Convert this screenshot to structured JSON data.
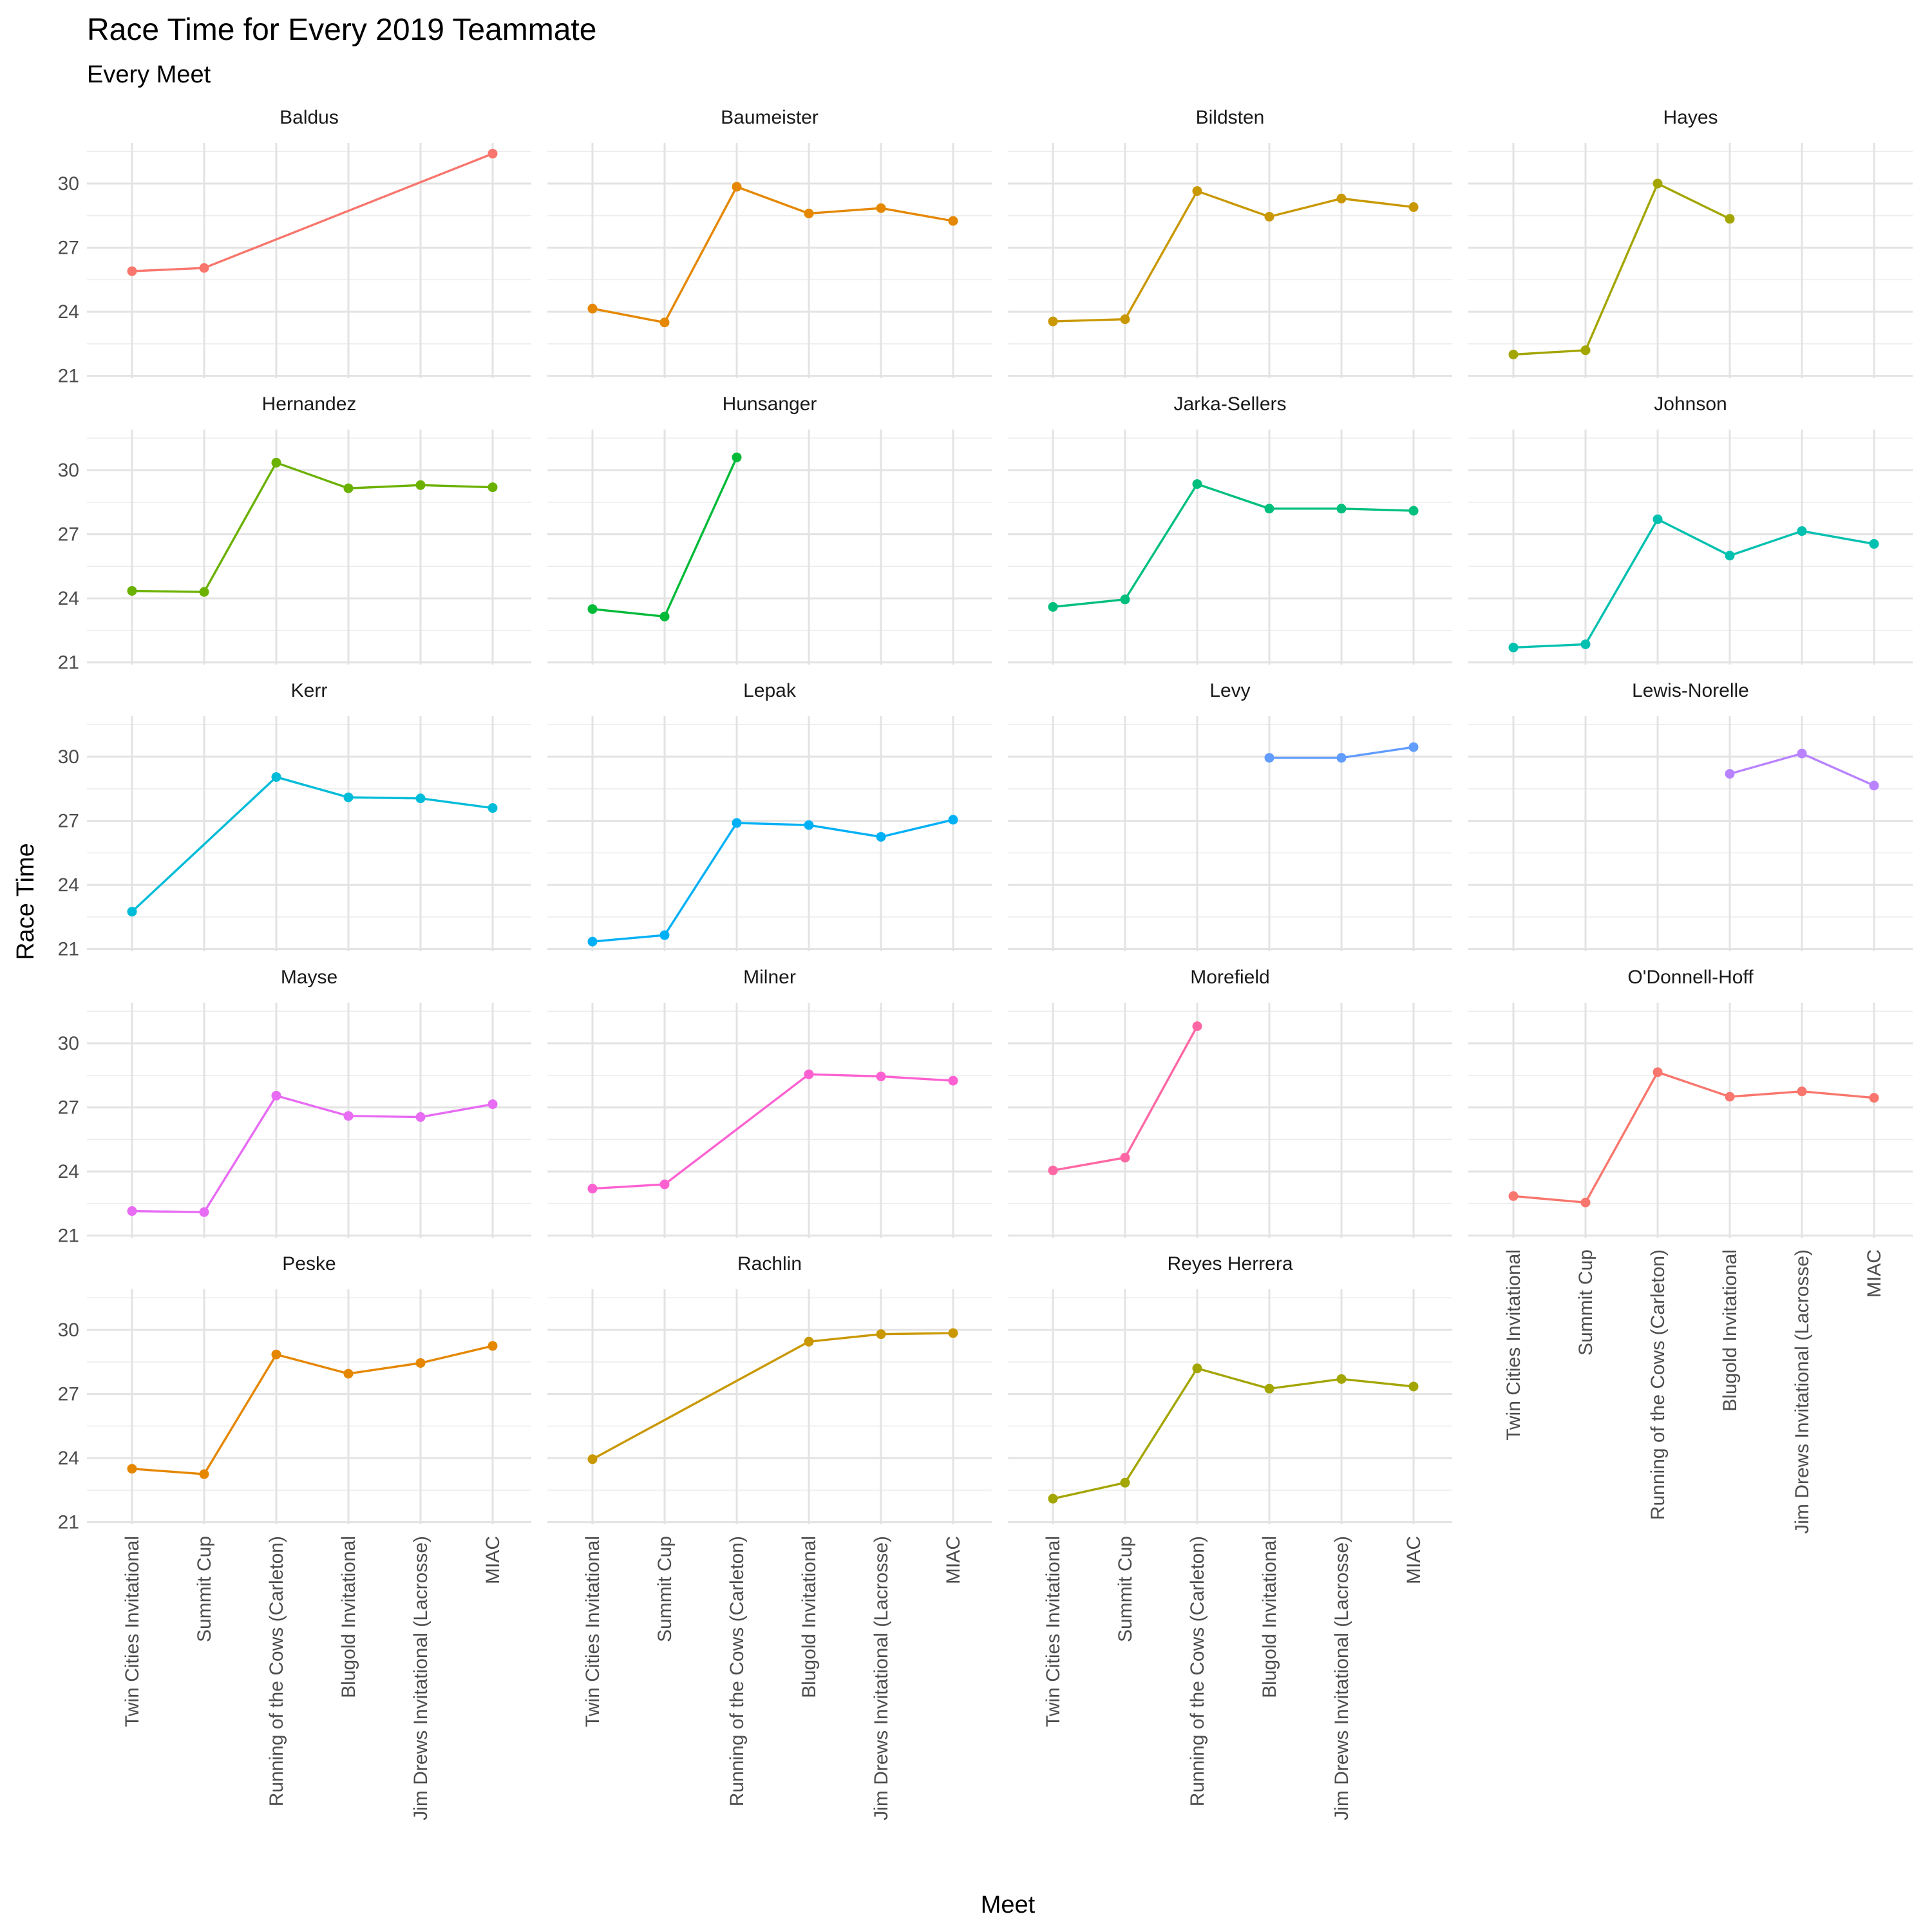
{
  "chart_data": {
    "type": "line",
    "title": "Race Time for Every 2019 Teammate",
    "subtitle": "Every Meet",
    "xlabel": "Meet",
    "ylabel": "Race Time",
    "categories": [
      "Twin Cities Invitational",
      "Summit Cup",
      "Running of the Cows (Carleton)",
      "Blugold Invitational",
      "Jim Drews Invitational (Lacrosse)",
      "MIAC"
    ],
    "y_ticks": [
      21,
      24,
      27,
      30
    ],
    "ylim": [
      20.9,
      31.9
    ],
    "grid": true,
    "legend": "none",
    "series": [
      {
        "name": "Baldus",
        "color": "#F8766D",
        "values": [
          25.9,
          26.05,
          null,
          null,
          null,
          31.4
        ]
      },
      {
        "name": "Baumeister",
        "color": "#E58700",
        "values": [
          24.15,
          23.5,
          29.85,
          28.6,
          28.85,
          28.25
        ]
      },
      {
        "name": "Bildsten",
        "color": "#C99800",
        "values": [
          23.55,
          23.65,
          29.65,
          28.45,
          29.3,
          28.9
        ]
      },
      {
        "name": "Hayes",
        "color": "#A3A500",
        "values": [
          22.0,
          22.2,
          30.0,
          28.35,
          null,
          null
        ]
      },
      {
        "name": "Hernandez",
        "color": "#6BB100",
        "values": [
          24.35,
          24.3,
          30.35,
          29.15,
          29.3,
          29.2
        ]
      },
      {
        "name": "Hunsanger",
        "color": "#00BA38",
        "values": [
          23.5,
          23.15,
          30.6,
          null,
          null,
          null
        ]
      },
      {
        "name": "Jarka-Sellers",
        "color": "#00BF7D",
        "values": [
          23.6,
          23.95,
          29.35,
          28.2,
          28.2,
          28.1
        ]
      },
      {
        "name": "Johnson",
        "color": "#00C0AF",
        "values": [
          21.7,
          21.85,
          27.7,
          26.0,
          27.15,
          26.55
        ]
      },
      {
        "name": "Kerr",
        "color": "#00BCD8",
        "values": [
          22.75,
          null,
          29.05,
          28.1,
          28.05,
          27.6
        ]
      },
      {
        "name": "Lepak",
        "color": "#00B0F6",
        "values": [
          21.35,
          21.65,
          26.9,
          26.8,
          26.25,
          27.05
        ]
      },
      {
        "name": "Levy",
        "color": "#619CFF",
        "values": [
          null,
          null,
          null,
          29.95,
          29.95,
          30.45
        ]
      },
      {
        "name": "Lewis-Norelle",
        "color": "#B983FF",
        "values": [
          null,
          null,
          null,
          29.2,
          30.15,
          28.65
        ]
      },
      {
        "name": "Mayse",
        "color": "#E76BF3",
        "values": [
          22.15,
          22.1,
          27.55,
          26.6,
          26.55,
          27.15
        ]
      },
      {
        "name": "Milner",
        "color": "#FD61D1",
        "values": [
          23.2,
          23.4,
          null,
          28.55,
          28.45,
          28.25
        ]
      },
      {
        "name": "Morefield",
        "color": "#FF67A4",
        "values": [
          24.05,
          24.65,
          30.8,
          null,
          null,
          null
        ]
      },
      {
        "name": "O'Donnell-Hoff",
        "color": "#F8766D",
        "values": [
          22.85,
          22.55,
          28.65,
          27.5,
          27.75,
          27.45
        ]
      },
      {
        "name": "Peske",
        "color": "#E58700",
        "values": [
          23.5,
          23.25,
          28.85,
          27.95,
          28.45,
          29.25
        ]
      },
      {
        "name": "Rachlin",
        "color": "#C99800",
        "values": [
          23.95,
          null,
          null,
          29.45,
          29.8,
          29.85
        ]
      },
      {
        "name": "Reyes Herrera",
        "color": "#A3A500",
        "values": [
          22.1,
          22.85,
          28.2,
          27.25,
          27.7,
          27.35
        ]
      }
    ]
  }
}
